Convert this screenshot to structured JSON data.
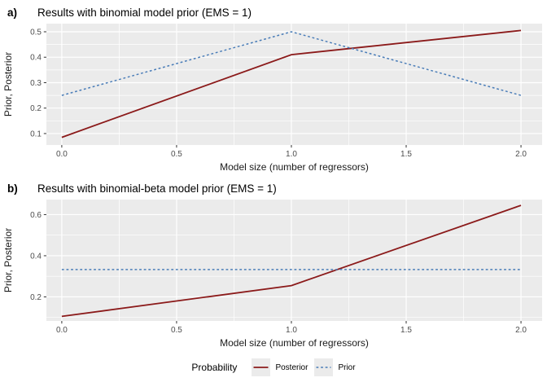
{
  "colors": {
    "posterior": "#8b1a1a",
    "prior": "#4a7db8",
    "panel_background": "#ebebeb",
    "gridline": "#ffffff",
    "tick_mark": "#333333",
    "axis_text": "#4d4d4d",
    "label_text": "#1a1a1a"
  },
  "chart_data": [
    {
      "type": "line",
      "tag": "a)",
      "title": "Results with binomial model prior (EMS = 1)",
      "xlabel": "Model size (number of regressors)",
      "ylabel": "Prior, Posterior",
      "x": [
        0,
        1,
        2
      ],
      "series": [
        {
          "name": "Posterior",
          "values": [
            0.085,
            0.41,
            0.505
          ],
          "color_key": "posterior",
          "style": "solid"
        },
        {
          "name": "Prior",
          "values": [
            0.25,
            0.5,
            0.25
          ],
          "color_key": "prior",
          "style": "dotted"
        }
      ],
      "xlim": [
        -0.067,
        2.092
      ],
      "ylim": [
        0.055,
        0.532
      ],
      "x_ticks": [
        0.0,
        0.5,
        1.0,
        1.5,
        2.0
      ],
      "y_ticks": [
        0.1,
        0.2,
        0.3,
        0.4,
        0.5
      ],
      "x_minor": [
        0.25,
        0.75,
        1.25,
        1.75
      ],
      "y_minor": [
        0.15,
        0.25,
        0.35,
        0.45
      ],
      "grid": true,
      "legend_position": "shared-bottom"
    },
    {
      "type": "line",
      "tag": "b)",
      "title": "Results with binomial-beta model prior (EMS = 1)",
      "xlabel": "Model size (number of regressors)",
      "ylabel": "Prior, Posterior",
      "x": [
        0,
        1,
        2
      ],
      "series": [
        {
          "name": "Posterior",
          "values": [
            0.105,
            0.255,
            0.645
          ],
          "color_key": "posterior",
          "style": "solid"
        },
        {
          "name": "Prior",
          "values": [
            0.333,
            0.333,
            0.333
          ],
          "color_key": "prior",
          "style": "dotted"
        }
      ],
      "xlim": [
        -0.067,
        2.092
      ],
      "ylim": [
        0.083,
        0.673
      ],
      "x_ticks": [
        0.0,
        0.5,
        1.0,
        1.5,
        2.0
      ],
      "y_ticks": [
        0.2,
        0.4,
        0.6
      ],
      "x_minor": [
        0.25,
        0.75,
        1.25,
        1.75
      ],
      "y_minor": [
        0.1,
        0.3,
        0.5
      ],
      "grid": true,
      "legend_position": "shared-bottom"
    }
  ],
  "legend": {
    "title": "Probability",
    "items": [
      {
        "label": "Posterior",
        "color_key": "posterior",
        "style": "solid"
      },
      {
        "label": "Prior",
        "color_key": "prior",
        "style": "dotted"
      }
    ]
  }
}
